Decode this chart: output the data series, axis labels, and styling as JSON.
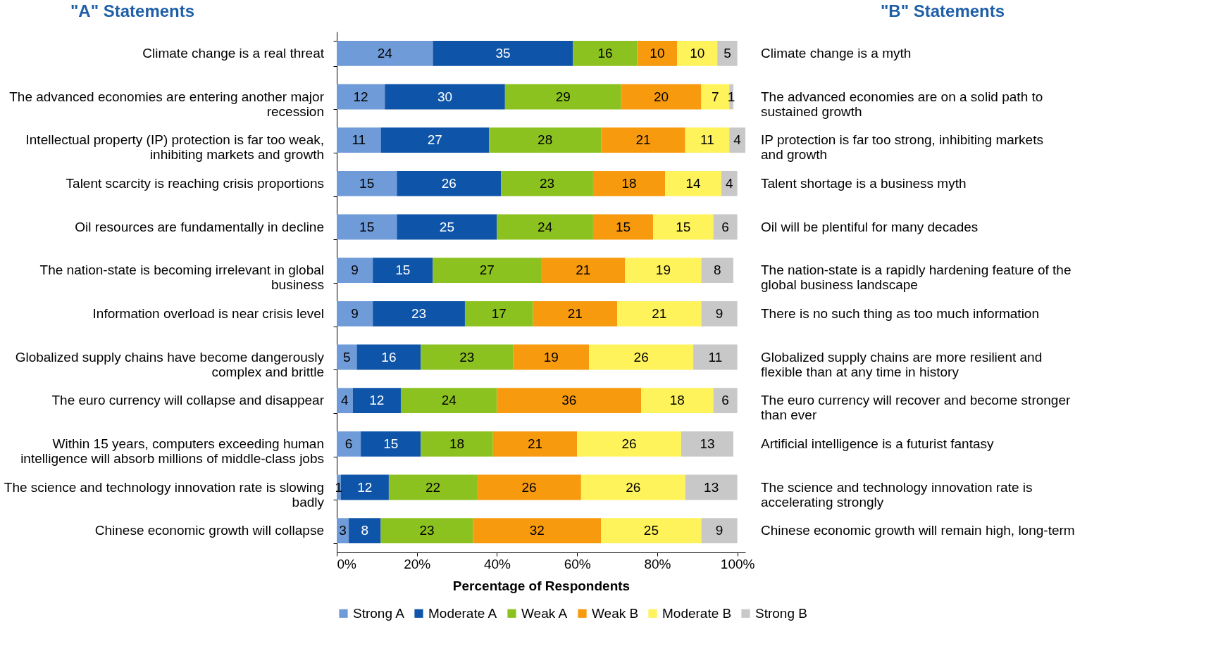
{
  "chart_data": {
    "type": "bar",
    "orientation": "horizontal",
    "stacked": true,
    "ylabel": "\"A\" Statements",
    "annotations": [
      "\"B\" Statements"
    ],
    "xlabel": "Percentage of Respondents",
    "categories": [
      "Climate change is a real threat",
      "The advanced economies are entering another major recession",
      "Intellectual property (IP) protection is far too weak, inhibiting markets and growth",
      "Talent scarcity is reaching crisis proportions",
      "Oil resources are fundamentally in decline",
      "The nation-state is becoming irrelevant in global business",
      "Information overload is near crisis level",
      "Globalized supply chains have become dangerously complex and brittle",
      "The euro currency will collapse and disappear",
      "Within 15 years, computers exceeding human intelligence will absorb millions of middle-class jobs",
      "The science and technology innovation rate is slowing badly",
      "Chinese economic growth will collapse"
    ],
    "y2_categories": [
      "Climate change is a myth",
      "The advanced economies are on a solid path to sustained growth",
      "IP protection is far too strong, inhibiting markets and growth",
      "Talent shortage is a business myth",
      "Oil will be plentiful for many decades",
      "The nation-state is a rapidly hardening feature of the global business landscape",
      "There is no such thing as too much information",
      "Globalized supply chains are more resilient and flexible than at any time in history",
      "The euro currency will recover and become stronger than ever",
      "Artificial intelligence is a futurist fantasy",
      "The science and technology innovation rate is accelerating strongly",
      "Chinese economic growth will remain high, long-term"
    ],
    "series": [
      {
        "name": "Strong A",
        "color": "#6f9bd8",
        "values": [
          24,
          12,
          11,
          15,
          15,
          9,
          9,
          5,
          4,
          6,
          1,
          3
        ]
      },
      {
        "name": "Moderate A",
        "color": "#0e54a8",
        "values": [
          35,
          30,
          27,
          26,
          25,
          15,
          23,
          16,
          12,
          15,
          12,
          8
        ]
      },
      {
        "name": "Weak A",
        "color": "#8cc21f",
        "values": [
          16,
          29,
          28,
          23,
          24,
          27,
          17,
          23,
          24,
          18,
          22,
          23
        ]
      },
      {
        "name": "Weak B",
        "color": "#f79a0e",
        "values": [
          10,
          20,
          21,
          18,
          15,
          21,
          21,
          19,
          36,
          21,
          26,
          32
        ]
      },
      {
        "name": "Moderate B",
        "color": "#fff35c",
        "values": [
          10,
          7,
          11,
          14,
          15,
          19,
          21,
          26,
          18,
          26,
          26,
          25
        ]
      },
      {
        "name": "Strong B",
        "color": "#c8c8c8",
        "values": [
          5,
          1,
          4,
          4,
          6,
          8,
          9,
          11,
          6,
          13,
          13,
          9
        ]
      }
    ],
    "xlim": [
      0,
      102
    ],
    "xticks": [
      {
        "value": 0,
        "label": "0%"
      },
      {
        "value": 20,
        "label": "20%"
      },
      {
        "value": 40,
        "label": "40%"
      },
      {
        "value": 60,
        "label": "60%"
      },
      {
        "value": 80,
        "label": "80%"
      },
      {
        "value": 100,
        "label": "100%"
      }
    ],
    "data_labels": true,
    "grid": false,
    "legend": "bottom"
  }
}
